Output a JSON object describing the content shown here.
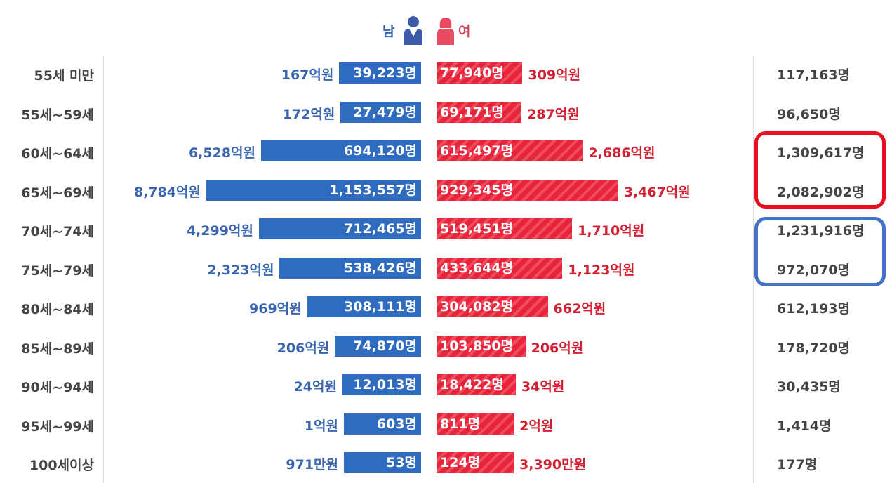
{
  "chart_data": {
    "type": "bar",
    "legend": {
      "male": "남",
      "female": "여"
    },
    "categories": [
      "55세 미만",
      "55세~59세",
      "60세~64세",
      "65세~69세",
      "70세~74세",
      "75세~79세",
      "80세~84세",
      "85세~89세",
      "90세~94세",
      "95세~99세",
      "100세이상"
    ],
    "series": [
      {
        "name": "남",
        "people": [
          "39,223명",
          "27,479명",
          "694,120명",
          "1,153,557명",
          "712,465명",
          "538,426명",
          "308,111명",
          "74,870명",
          "12,013명",
          "603명",
          "53명"
        ],
        "people_values": [
          39223,
          27479,
          694120,
          1153557,
          712465,
          538426,
          308111,
          74870,
          12013,
          603,
          53
        ],
        "amounts": [
          "167억원",
          "172억원",
          "6,528억원",
          "8,784억원",
          "4,299억원",
          "2,323억원",
          "969억원",
          "206억원",
          "24억원",
          "1억원",
          "971만원"
        ]
      },
      {
        "name": "여",
        "people": [
          "77,940명",
          "69,171명",
          "615,497명",
          "929,345명",
          "519,451명",
          "433,644명",
          "304,082명",
          "103,850명",
          "18,422명",
          "811명",
          "124명"
        ],
        "people_values": [
          77940,
          69171,
          615497,
          929345,
          519451,
          433644,
          304082,
          103850,
          18422,
          811,
          124
        ],
        "amounts": [
          "309억원",
          "287억원",
          "2,686억원",
          "3,467억원",
          "1,710억원",
          "1,123억원",
          "662억원",
          "206억원",
          "34억원",
          "2억원",
          "3,390만원"
        ]
      }
    ],
    "totals": [
      "117,163명",
      "96,650명",
      "1,309,617명",
      "2,082,902명",
      "1,231,916명",
      "972,070명",
      "612,193명",
      "178,720명",
      "30,435명",
      "1,414명",
      "177명"
    ],
    "highlights": [
      {
        "rows": [
          "60세~64세",
          "65세~69세"
        ],
        "color": "#e8101c"
      },
      {
        "rows": [
          "70세~74세",
          "75세~79세"
        ],
        "color": "#4472c4"
      }
    ],
    "colors": {
      "male": "#2f6bbf",
      "female": "#e8243a"
    }
  }
}
